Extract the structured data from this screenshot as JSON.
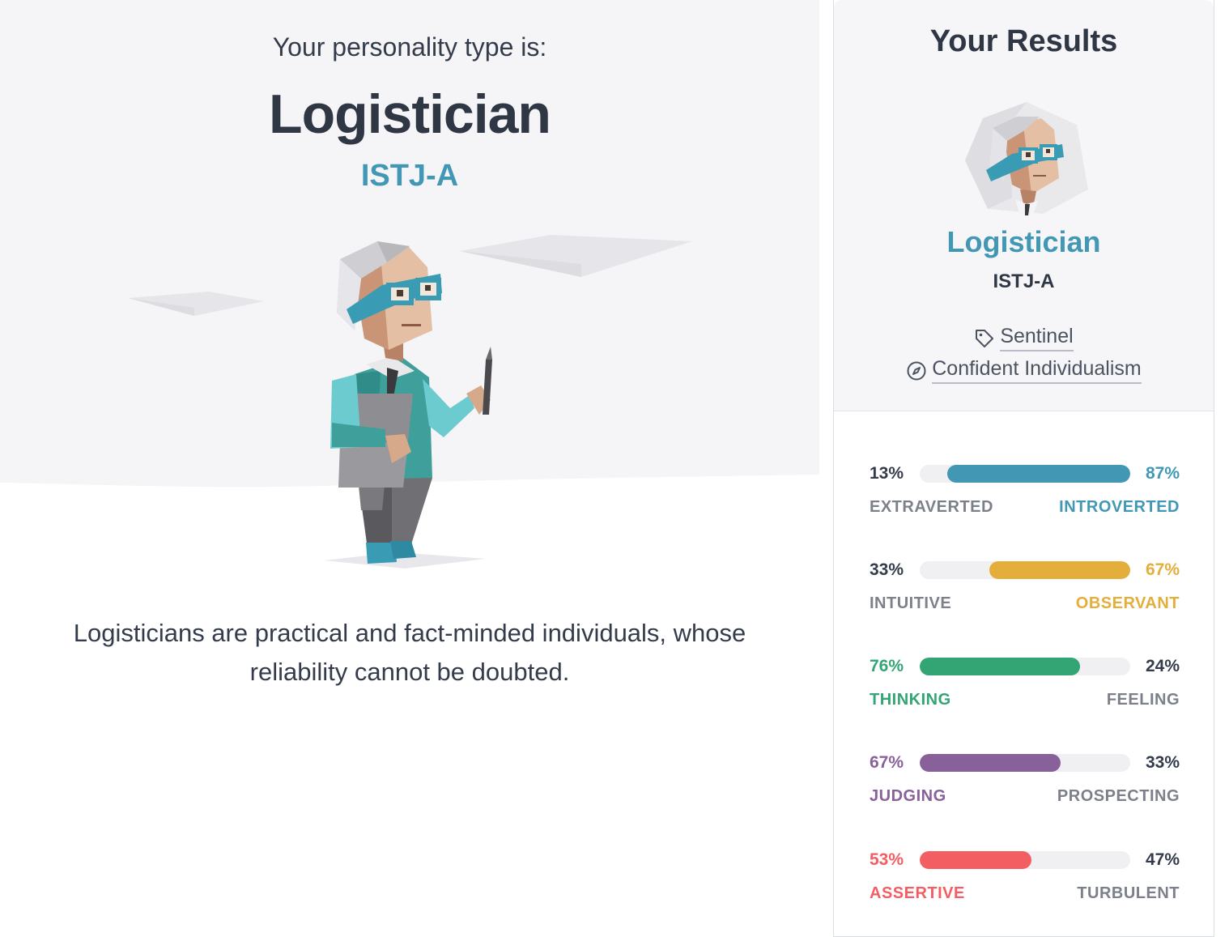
{
  "hero": {
    "kicker": "Your personality type is:",
    "type_name": "Logistician",
    "type_code": "ISTJ-A",
    "description": "Logisticians are practical and fact-minded individuals, whose reliability cannot be doubted."
  },
  "card": {
    "heading": "Your Results",
    "type_name": "Logistician",
    "type_code": "ISTJ-A",
    "role": {
      "icon": "tag-icon",
      "label": "Sentinel"
    },
    "strategy": {
      "icon": "compass-icon",
      "label": "Confident Individualism"
    }
  },
  "traits": [
    {
      "left_pct": "13%",
      "right_pct": "87%",
      "left_label": "EXTRAVERTED",
      "right_label": "INTROVERTED",
      "dominant": "right",
      "dominant_value": 0.87,
      "color": "#4298b4"
    },
    {
      "left_pct": "33%",
      "right_pct": "67%",
      "left_label": "INTUITIVE",
      "right_label": "OBSERVANT",
      "dominant": "right",
      "dominant_value": 0.67,
      "color": "#e4ae3a"
    },
    {
      "left_pct": "76%",
      "right_pct": "24%",
      "left_label": "THINKING",
      "right_label": "FEELING",
      "dominant": "left",
      "dominant_value": 0.76,
      "color": "#33a474"
    },
    {
      "left_pct": "67%",
      "right_pct": "33%",
      "left_label": "JUDGING",
      "right_label": "PROSPECTING",
      "dominant": "left",
      "dominant_value": 0.67,
      "color": "#88619a"
    },
    {
      "left_pct": "53%",
      "right_pct": "47%",
      "left_label": "ASSERTIVE",
      "right_label": "TURBULENT",
      "dominant": "left",
      "dominant_value": 0.53,
      "color": "#f25e62"
    }
  ]
}
